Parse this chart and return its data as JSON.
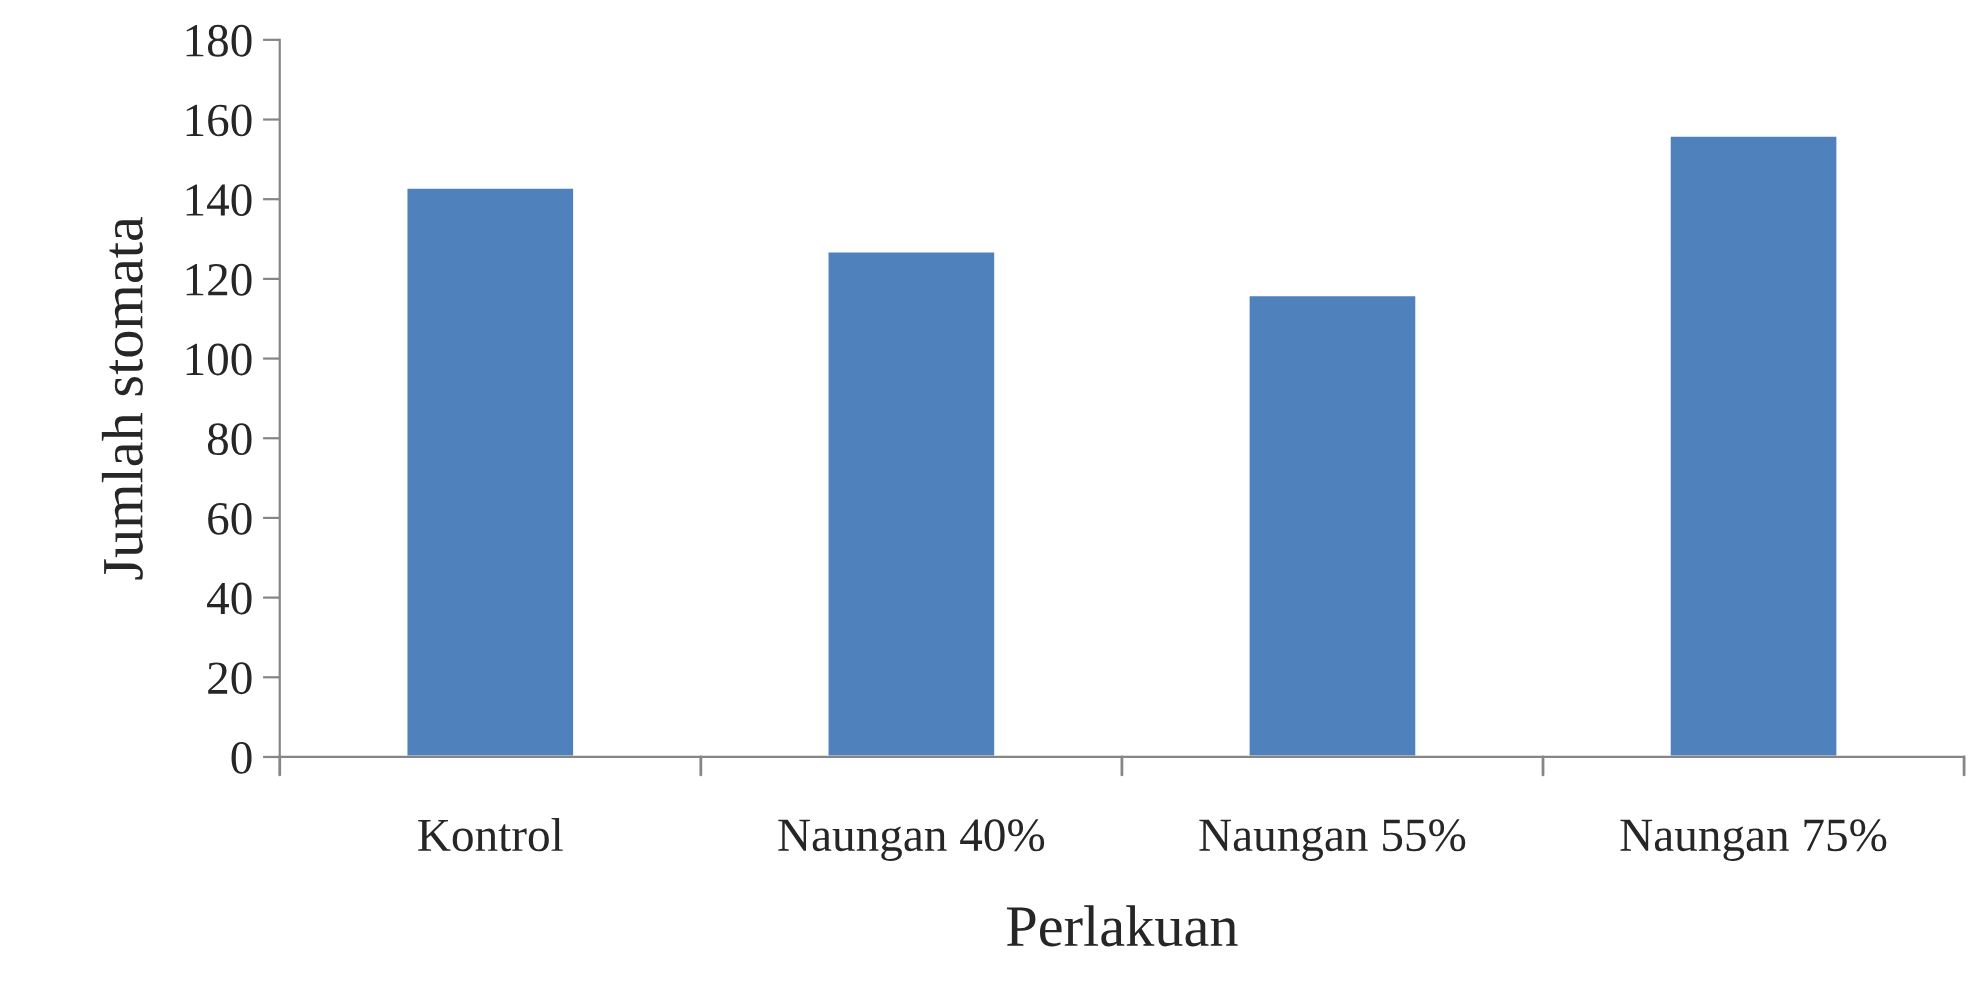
{
  "chart_data": {
    "type": "bar",
    "xlabel": "Perlakuan",
    "ylabel": "Jumlah stomata",
    "categories": [
      "Kontrol",
      "Naungan 40%",
      "Naungan 55%",
      "Naungan 75%"
    ],
    "values": [
      143,
      127,
      116,
      156
    ],
    "color": "#4f81bd",
    "ylim": [
      0,
      180
    ],
    "yticks": [
      0,
      20,
      40,
      60,
      80,
      100,
      120,
      140,
      160,
      180
    ],
    "grid": false,
    "legend": false
  }
}
